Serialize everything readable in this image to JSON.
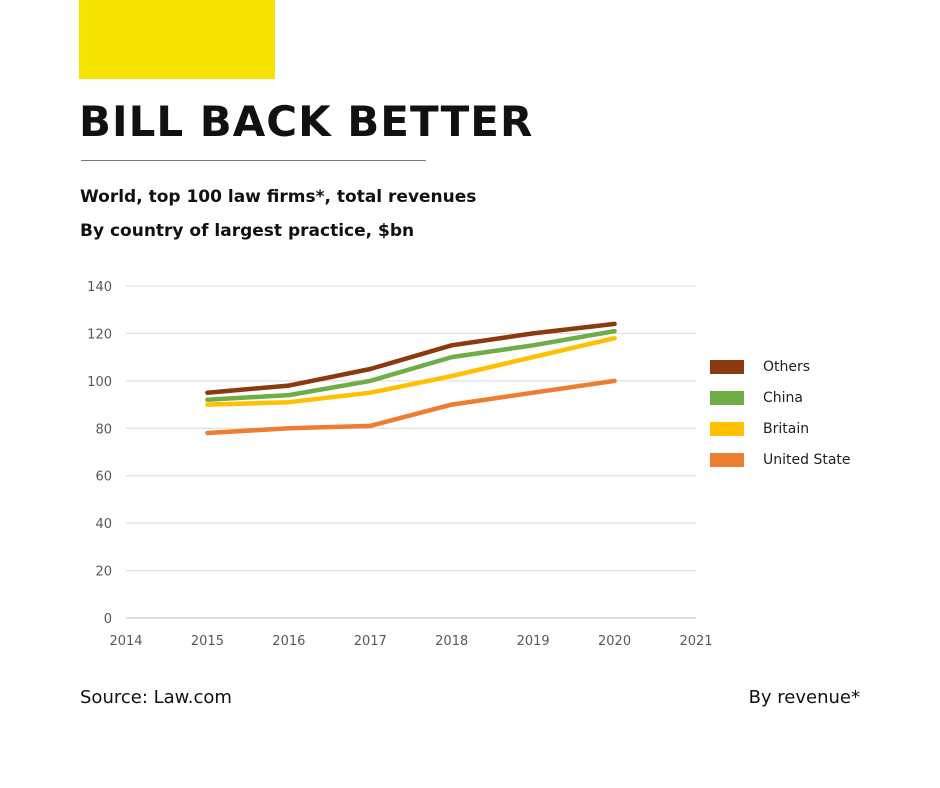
{
  "header": {
    "title": "BILL BACK BETTER",
    "subtitle_line1": "World, top 100 law firms*, total revenues",
    "subtitle_line2": "By country of largest practice, $bn",
    "accent_color": "#f5e300"
  },
  "footer": {
    "source": "Source: Law.com",
    "note": "By revenue*"
  },
  "chart_data": {
    "type": "line",
    "title": "",
    "xlabel": "",
    "ylabel": "",
    "xlim": [
      2014,
      2021
    ],
    "ylim": [
      0,
      140
    ],
    "x_ticks": [
      2014,
      2015,
      2016,
      2017,
      2018,
      2019,
      2020,
      2021
    ],
    "y_ticks": [
      0,
      20,
      40,
      60,
      80,
      100,
      120,
      140
    ],
    "grid": true,
    "legend_position": "right",
    "x": [
      2015,
      2016,
      2017,
      2018,
      2019,
      2020
    ],
    "series": [
      {
        "name": "Others",
        "color": "#8b3a0f",
        "values": [
          95,
          98,
          105,
          115,
          120,
          124
        ]
      },
      {
        "name": "China",
        "color": "#70ad47",
        "values": [
          92,
          94,
          100,
          110,
          115,
          121
        ]
      },
      {
        "name": "Britain",
        "color": "#ffc000",
        "values": [
          90,
          91,
          95,
          102,
          110,
          118
        ]
      },
      {
        "name": "United State",
        "color": "#ed7d31",
        "values": [
          78,
          80,
          81,
          90,
          95,
          100
        ]
      }
    ]
  }
}
